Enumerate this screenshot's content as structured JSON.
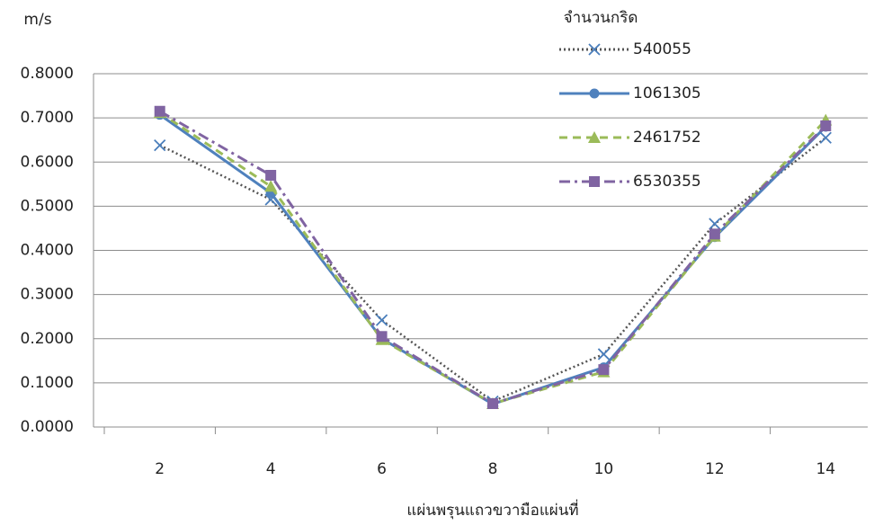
{
  "chart_data": {
    "type": "line",
    "y_label": "m/s",
    "x_label": "แผ่นพรุนแถวขวามือแผ่นที่",
    "legend_title": "จำนวนกริด",
    "categories": [
      "2",
      "4",
      "6",
      "8",
      "10",
      "12",
      "14"
    ],
    "ylim": [
      0,
      0.8
    ],
    "yticks": [
      {
        "value": 0,
        "label": "0.0000"
      },
      {
        "value": 0.1,
        "label": "0.1000"
      },
      {
        "value": 0.2,
        "label": "0.2000"
      },
      {
        "value": 0.3,
        "label": "0.3000"
      },
      {
        "value": 0.4,
        "label": "0.4000"
      },
      {
        "value": 0.5,
        "label": "0.5000"
      },
      {
        "value": 0.6,
        "label": "0.6000"
      },
      {
        "value": 0.7,
        "label": "0.7000"
      },
      {
        "value": 0.8,
        "label": "0.8000"
      }
    ],
    "grid": true,
    "series": [
      {
        "name": "540055",
        "color": "#4a7ebb",
        "dash": "dotted",
        "marker": "x",
        "values": [
          0.638,
          0.515,
          0.242,
          0.058,
          0.165,
          0.46,
          0.655
        ]
      },
      {
        "name": "1061305",
        "color": "#4f81bd",
        "dash": "solid",
        "marker": "circle",
        "values": [
          0.707,
          0.53,
          0.2,
          0.052,
          0.135,
          0.43,
          0.68
        ]
      },
      {
        "name": "2461752",
        "color": "#9bbb59",
        "dash": "dashed",
        "marker": "triangle",
        "values": [
          0.712,
          0.545,
          0.198,
          0.053,
          0.125,
          0.432,
          0.695
        ]
      },
      {
        "name": "6530355",
        "color": "#8064a2",
        "dash": "dashdot",
        "marker": "square",
        "values": [
          0.715,
          0.57,
          0.205,
          0.053,
          0.13,
          0.437,
          0.682
        ]
      }
    ]
  }
}
